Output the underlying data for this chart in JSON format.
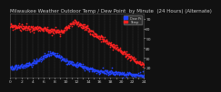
{
  "title": "Milwaukee Weather Outdoor Temp / Dew Point  by Minute  (24 Hours) (Alternate)",
  "background_color": "#111111",
  "plot_bg_color": "#111111",
  "grid_color": "#444444",
  "temp_color": "#ff2222",
  "dew_color": "#2244ff",
  "legend_temp_label": "Temp",
  "legend_dew_label": "Dew Pt",
  "xlim": [
    0,
    1440
  ],
  "ylim": [
    10,
    75
  ],
  "ytick_positions": [
    20,
    30,
    40,
    50,
    60,
    70
  ],
  "ytick_labels": [
    "20",
    "30",
    "40",
    "50",
    "60",
    "70"
  ],
  "xtick_positions": [
    0,
    60,
    120,
    180,
    240,
    300,
    360,
    420,
    480,
    540,
    600,
    660,
    720,
    780,
    840,
    900,
    960,
    1020,
    1080,
    1140,
    1200,
    1260,
    1320,
    1380,
    1440
  ],
  "marker_size": 1.5,
  "title_fontsize": 4.0,
  "tick_fontsize": 3.2,
  "tick_color": "#cccccc",
  "title_color": "#cccccc"
}
